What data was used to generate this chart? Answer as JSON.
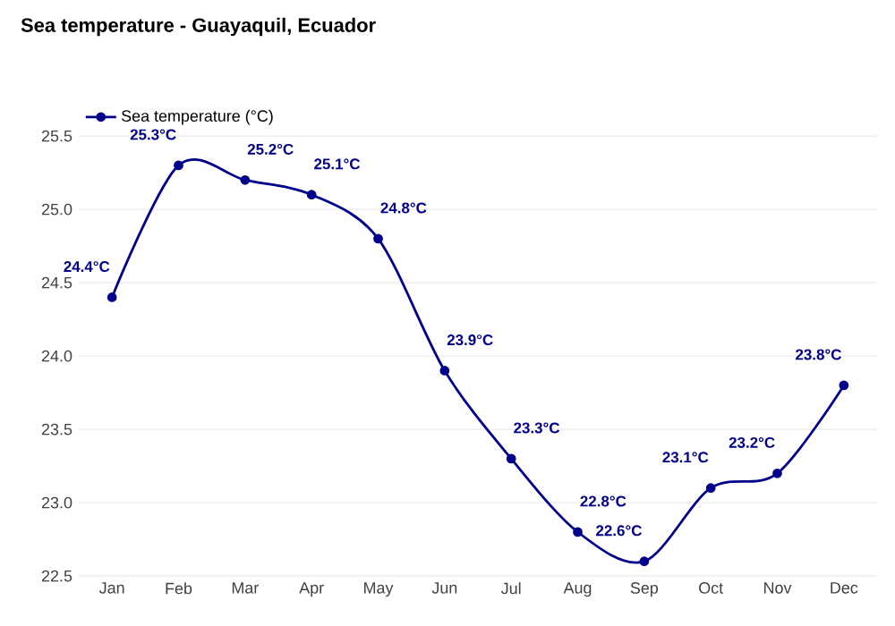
{
  "chart_data": {
    "type": "line",
    "title": "Sea temperature - Guayaquil, Ecuador",
    "categories": [
      "Jan",
      "Feb",
      "Mar",
      "Apr",
      "May",
      "Jun",
      "Jul",
      "Aug",
      "Sep",
      "Oct",
      "Nov",
      "Dec"
    ],
    "series": [
      {
        "name": "Sea temperature (°C)",
        "color": "#00008b",
        "values": [
          24.4,
          25.3,
          25.2,
          25.1,
          24.8,
          23.9,
          23.3,
          22.8,
          22.6,
          23.1,
          23.2,
          23.8
        ],
        "value_labels": [
          "24.4°C",
          "25.3°C",
          "25.2°C",
          "25.1°C",
          "24.8°C",
          "23.9°C",
          "23.3°C",
          "22.8°C",
          "22.6°C",
          "23.1°C",
          "23.2°C",
          "23.8°C"
        ]
      }
    ],
    "ylim": [
      22.5,
      25.5
    ],
    "yticks": [
      22.5,
      {
        "value": 23,
        "label": "23.0"
      },
      23.5,
      {
        "value": 24,
        "label": "24.0"
      },
      24.5,
      {
        "value": 25,
        "label": "25.0"
      },
      25.5
    ],
    "grid": "y",
    "legend": "top left",
    "marker": "circle",
    "line_style": "solid"
  }
}
